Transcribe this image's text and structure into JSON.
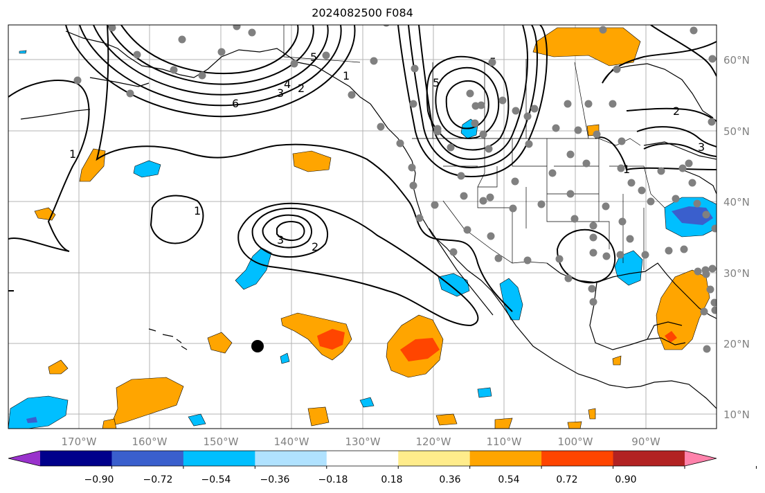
{
  "title": "2024082500 F084",
  "lat_labels": [
    "60°N",
    "50°N",
    "40°N",
    "30°N",
    "20°N",
    "10°N"
  ],
  "lon_labels": [
    "170°W",
    "160°W",
    "150°W",
    "140°W",
    "130°W",
    "120°W",
    "110°W",
    "100°W",
    "90°W"
  ],
  "colorbar": {
    "ticks": [
      "−0.90",
      "−0.72",
      "−0.54",
      "−0.36",
      "−0.18",
      "0.18",
      "0.36",
      "0.54",
      "0.72",
      "0.90"
    ],
    "colors": [
      "#9932cc",
      "#00008b",
      "#3a5fcd",
      "#00bfff",
      "#b0e2ff",
      "#ffffff",
      "#ffec8b",
      "#ffa500",
      "#ff4500",
      "#b22222",
      "#ff82ab"
    ]
  },
  "contour_labels": [
    "6",
    "5",
    "4",
    "3",
    "2",
    "1",
    "1",
    "1",
    "2",
    "3",
    "5",
    "5",
    "2",
    "3",
    "1"
  ],
  "stations": 96
}
